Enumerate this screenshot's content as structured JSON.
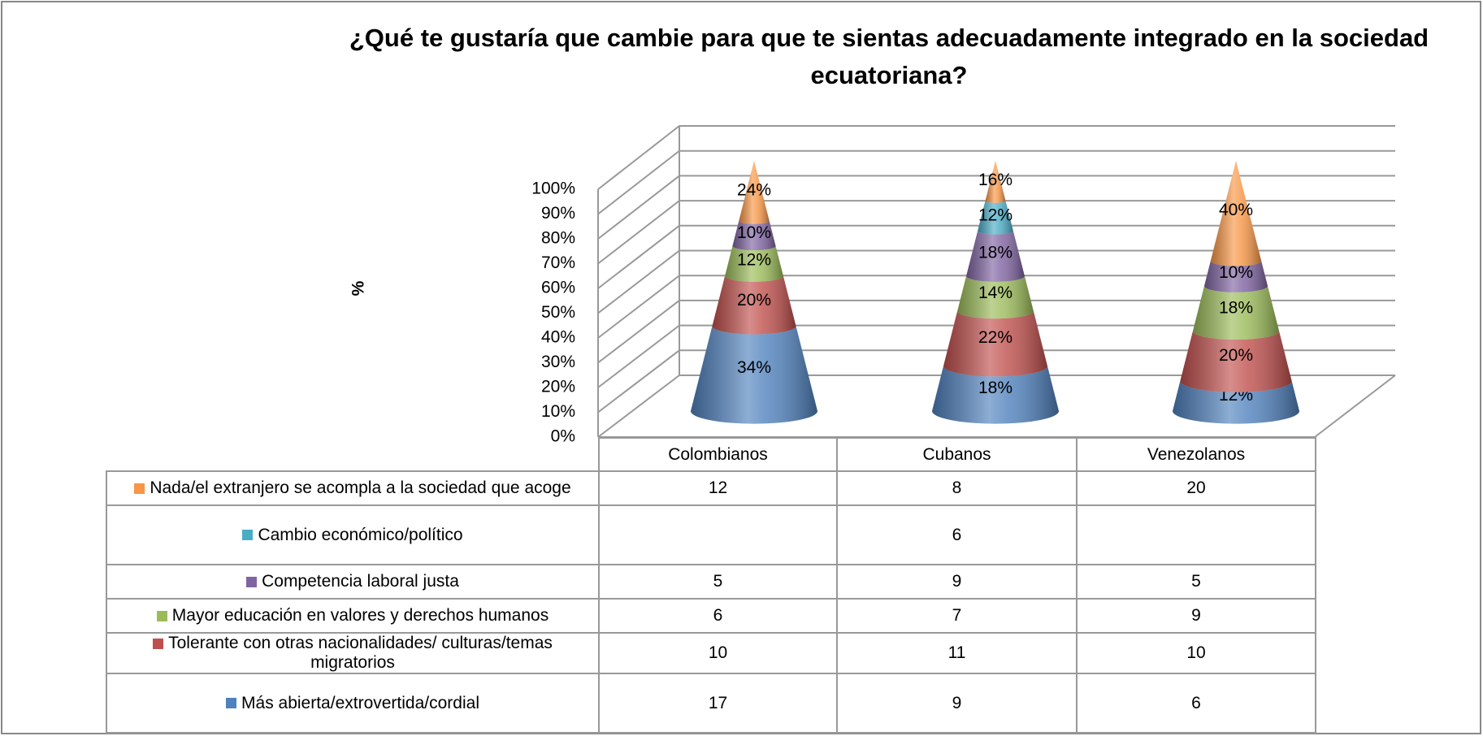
{
  "chart_data": {
    "type": "cone",
    "title": "¿Qué te gustaría que cambie para que te sientas adecuadamente integrado en la sociedad ecuatoriana?",
    "y_label": "%",
    "categories": [
      "Colombianos",
      "Cubanos",
      "Venezolanos"
    ],
    "ylim": [
      0,
      100
    ],
    "yticks": [
      {
        "value": 0,
        "label": "0%"
      },
      {
        "value": 10,
        "label": "10%"
      },
      {
        "value": 20,
        "label": "20%"
      },
      {
        "value": 30,
        "label": "30%"
      },
      {
        "value": 40,
        "label": "40%"
      },
      {
        "value": 50,
        "label": "50%"
      },
      {
        "value": 60,
        "label": "60%"
      },
      {
        "value": 70,
        "label": "70%"
      },
      {
        "value": 80,
        "label": "80%"
      },
      {
        "value": 90,
        "label": "90%"
      },
      {
        "value": 100,
        "label": "100%"
      }
    ],
    "grid": true,
    "series": [
      {
        "name": "Más abierta/extrovertida/cordial",
        "color": "#4f81bd",
        "values": [
          34,
          18,
          12
        ],
        "value_labels": [
          "34%",
          "18%",
          "12%"
        ],
        "counts": [
          17,
          9,
          6
        ]
      },
      {
        "name": "Tolerante con otras nacionalidades/  culturas/temas migratorios",
        "color": "#c0504d",
        "values": [
          20,
          22,
          20
        ],
        "value_labels": [
          "20%",
          "22%",
          "20%"
        ],
        "counts": [
          10,
          11,
          10
        ]
      },
      {
        "name": "Mayor educación en valores y derechos humanos",
        "color": "#9bbb59",
        "values": [
          12,
          14,
          18
        ],
        "value_labels": [
          "12%",
          "14%",
          "18%"
        ],
        "counts": [
          6,
          7,
          9
        ]
      },
      {
        "name": "Competencia laboral justa",
        "color": "#8064a2",
        "values": [
          10,
          18,
          10
        ],
        "value_labels": [
          "10%",
          "18%",
          "10%"
        ],
        "counts": [
          5,
          9,
          5
        ]
      },
      {
        "name": "Cambio económico/político",
        "color": "#4bacc6",
        "values": [
          null,
          12,
          null
        ],
        "value_labels": [
          null,
          "12%",
          null
        ],
        "counts": [
          null,
          6,
          null
        ]
      },
      {
        "name": "Nada/el extranjero se acompla a la sociedad que acoge",
        "color": "#f79646",
        "values": [
          24,
          16,
          40
        ],
        "value_labels": [
          "24%",
          "16%",
          "40%"
        ],
        "counts": [
          12,
          8,
          20
        ]
      }
    ]
  }
}
